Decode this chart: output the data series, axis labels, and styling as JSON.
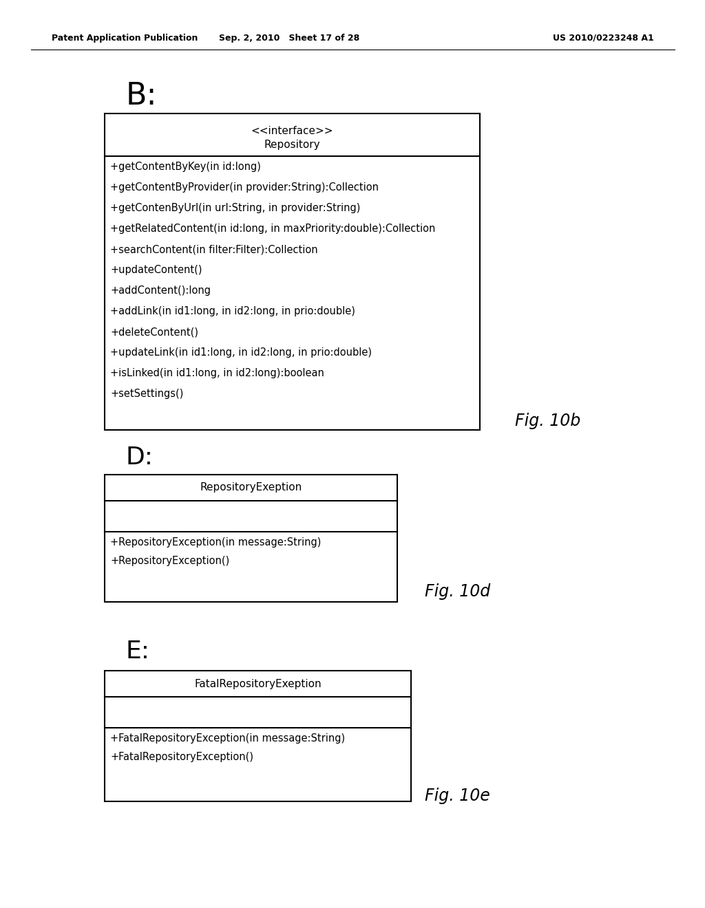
{
  "header_left": "Patent Application Publication",
  "header_mid": "Sep. 2, 2010   Sheet 17 of 28",
  "header_right": "US 2010/0223248 A1",
  "bg_color": "#ffffff",
  "label_B": "B:",
  "label_D": "D:",
  "label_E": "E:",
  "fig10b": "Fig. 10b",
  "fig10d": "Fig. 10d",
  "fig10e": "Fig. 10e",
  "box_B": {
    "title_line1": "<<interface>>",
    "title_line2": "Repository",
    "methods": [
      "+getContentByKey(in id:long)",
      "+getContentByProvider(in provider:String):Collection",
      "+getContenByUrl(in url:String, in provider:String)",
      "+getRelatedContent(in id:long, in maxPriority:double):Collection",
      "+searchContent(in filter:Filter):Collection",
      "+updateContent()",
      "+addContent():long",
      "+addLink(in id1:long, in id2:long, in prio:double)",
      "+deleteContent()",
      "+updateLink(in id1:long, in id2:long, in prio:double)",
      "+isLinked(in id1:long, in id2:long):boolean",
      "+setSettings()"
    ]
  },
  "box_D": {
    "title": "RepositoryExeption",
    "methods": [
      "+RepositoryException(in message:String)",
      "+RepositoryException()"
    ]
  },
  "box_E": {
    "title": "FatalRepositoryExeption",
    "methods": [
      "+FatalRepositoryException(in message:String)",
      "+FatalRepositoryException()"
    ]
  }
}
